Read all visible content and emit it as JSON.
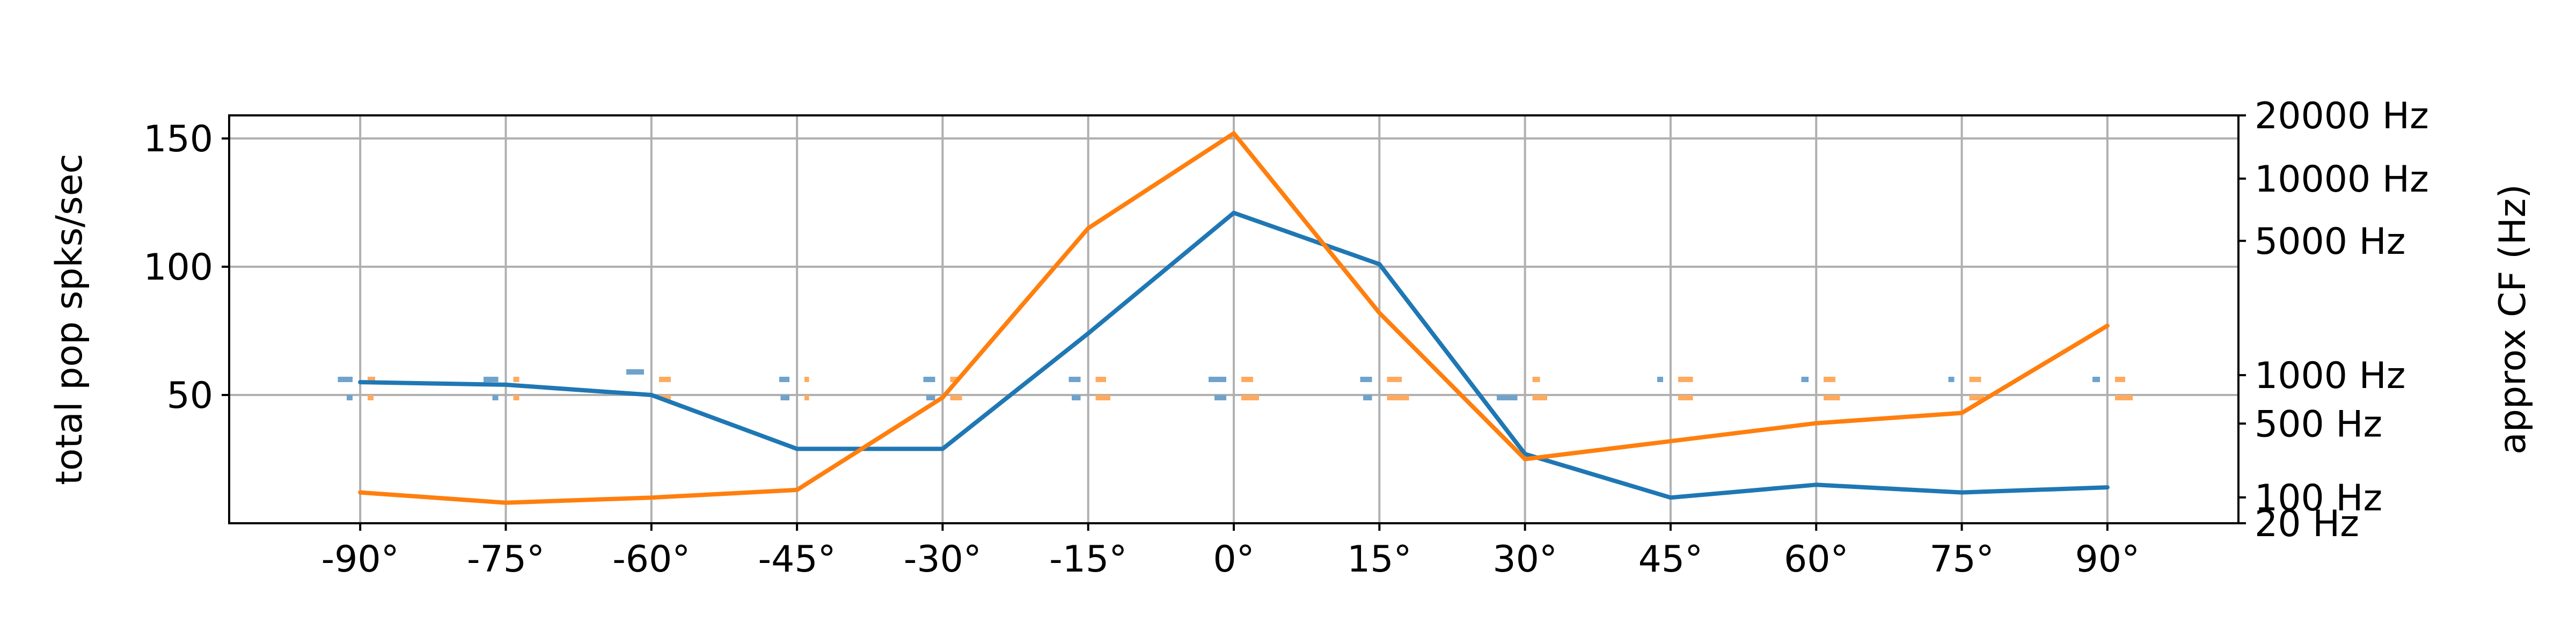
{
  "chart_data": {
    "type": "line",
    "x": [
      "-90°",
      "-75°",
      "-60°",
      "-45°",
      "-30°",
      "-15°",
      "0°",
      "15°",
      "30°",
      "45°",
      "60°",
      "75°",
      "90°"
    ],
    "x_values": [
      -90,
      -75,
      -60,
      -45,
      -30,
      -15,
      0,
      15,
      30,
      45,
      60,
      75,
      90
    ],
    "xlim": [
      -103.5,
      103.5
    ],
    "ylabel": "total pop spks/sec",
    "ylim": [
      0,
      159
    ],
    "yticks": [
      50,
      100,
      150
    ],
    "y2label": "approx CF (Hz)",
    "y2_scale": "erb",
    "y2ticks": [
      "20000 Hz",
      "10000 Hz",
      "5000 Hz",
      "1000 Hz",
      "500 Hz",
      "100 Hz",
      "20 Hz"
    ],
    "grid": true,
    "colors": {
      "blue": "#1f77b4",
      "orange": "#ff7f0e",
      "light_blue": "#6fa3cc",
      "light_orange": "#ffaa5e"
    },
    "series": [
      {
        "color": "#1f77b4",
        "values": [
          55,
          54,
          50,
          29,
          29,
          74,
          121,
          101,
          27,
          10,
          15,
          12,
          14
        ]
      },
      {
        "color": "#ff7f0e",
        "values": [
          12,
          8,
          10,
          13,
          49,
          115,
          152,
          82,
          25,
          32,
          39,
          43,
          77
        ]
      }
    ],
    "cf_distributions": {
      "blue": [
        [
          [
            50,
            0.2
          ],
          [
            55,
            0.5
          ]
        ],
        [
          [
            50,
            0.2
          ],
          [
            55,
            0.5
          ]
        ],
        [
          [
            58,
            0.6
          ]
        ],
        [
          [
            50,
            0.3
          ],
          [
            55,
            0.35
          ]
        ],
        [
          [
            50,
            0.3
          ],
          [
            55,
            0.4
          ]
        ],
        [
          [
            50,
            0.3
          ],
          [
            55,
            0.4
          ]
        ],
        [
          [
            50,
            0.4
          ],
          [
            55,
            0.6
          ]
        ],
        [
          [
            50,
            0.3
          ],
          [
            55,
            0.4
          ]
        ],
        [
          [
            50,
            0.7
          ]
        ],
        [
          [
            55,
            0.2
          ]
        ],
        [
          [
            55,
            0.25
          ]
        ],
        [
          [
            55,
            0.2
          ]
        ],
        [
          [
            55,
            0.25
          ]
        ]
      ],
      "orange": [
        [
          [
            50,
            0.2
          ],
          [
            55,
            0.25
          ]
        ],
        [
          [
            50,
            0.2
          ],
          [
            55,
            0.2
          ]
        ],
        [
          [
            50,
            0.4
          ],
          [
            55,
            0.4
          ]
        ],
        [
          [
            50,
            0.15
          ],
          [
            55,
            0.15
          ]
        ],
        [
          [
            50,
            0.4
          ],
          [
            55,
            0.3
          ]
        ],
        [
          [
            50,
            0.5
          ],
          [
            55,
            0.35
          ]
        ],
        [
          [
            50,
            0.6
          ],
          [
            55,
            0.4
          ]
        ],
        [
          [
            50,
            0.75
          ],
          [
            55,
            0.5
          ]
        ],
        [
          [
            50,
            0.5
          ],
          [
            55,
            0.25
          ]
        ],
        [
          [
            50,
            0.5
          ],
          [
            55,
            0.5
          ]
        ],
        [
          [
            50,
            0.55
          ],
          [
            55,
            0.4
          ]
        ],
        [
          [
            50,
            0.5
          ],
          [
            55,
            0.4
          ]
        ],
        [
          [
            50,
            0.6
          ],
          [
            55,
            0.35
          ]
        ]
      ]
    }
  }
}
